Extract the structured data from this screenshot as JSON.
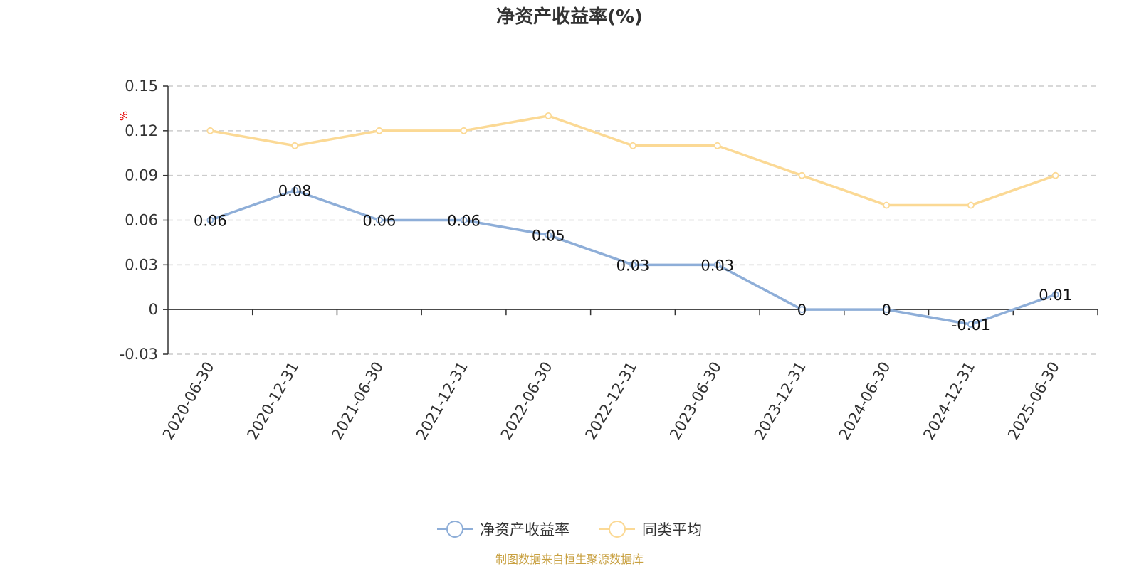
{
  "chart_data": {
    "type": "line",
    "title": "净资产收益率(%)",
    "unit_label": "%",
    "categories": [
      "2020-06-30",
      "2020-12-31",
      "2021-06-30",
      "2021-12-31",
      "2022-06-30",
      "2022-12-31",
      "2023-06-30",
      "2023-12-31",
      "2024-06-30",
      "2024-12-31",
      "2025-06-30"
    ],
    "series": [
      {
        "name": "净资产收益率",
        "color": "#8eaed8",
        "values": [
          0.06,
          0.08,
          0.06,
          0.06,
          0.05,
          0.03,
          0.03,
          0,
          0,
          -0.01,
          0.01
        ],
        "labels_shown": true
      },
      {
        "name": "同类平均",
        "color": "#fbd995",
        "values": [
          0.12,
          0.11,
          0.12,
          0.12,
          0.13,
          0.11,
          0.11,
          0.09,
          0.07,
          0.07,
          0.09
        ],
        "labels_shown": false
      }
    ],
    "y_ticks": [
      "0.15",
      "0.12",
      "0.09",
      "0.06",
      "0.03",
      "0",
      "-0.03"
    ],
    "ylim": [
      -0.03,
      0.15
    ],
    "y_tick_step": 0.03,
    "grid": true,
    "legend_position": "bottom-center"
  },
  "source_note": "制图数据来自恒生聚源数据库"
}
